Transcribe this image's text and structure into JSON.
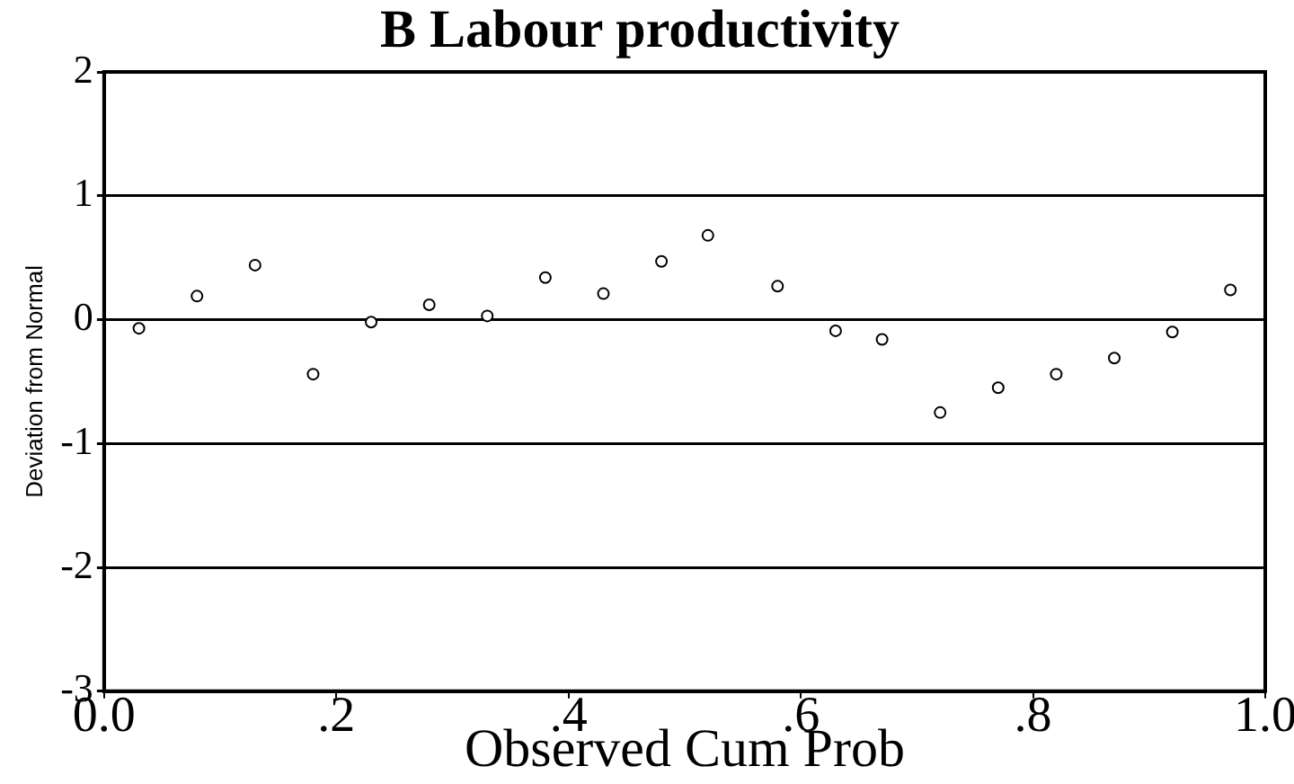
{
  "chart_data": {
    "type": "scatter",
    "title": "B Labour productivity",
    "xlabel": "Observed Cum Prob",
    "ylabel": "Deviation from Normal",
    "x": [
      0.03,
      0.08,
      0.13,
      0.18,
      0.23,
      0.28,
      0.33,
      0.38,
      0.43,
      0.48,
      0.52,
      0.58,
      0.63,
      0.67,
      0.72,
      0.77,
      0.82,
      0.87,
      0.92,
      0.97
    ],
    "series": [
      {
        "color": "#000000",
        "values": [
          -0.07,
          0.19,
          0.44,
          -0.44,
          -0.02,
          0.12,
          0.03,
          0.34,
          0.21,
          0.47,
          0.68,
          0.27,
          -0.09,
          -0.16,
          -0.75,
          -0.55,
          -0.44,
          -0.31,
          -0.1,
          0.24
        ]
      }
    ],
    "xlim": [
      0,
      1
    ],
    "xticks": [
      {
        "value": 0,
        "label": "0.0"
      },
      {
        "value": 0.2,
        "label": ".2"
      },
      {
        "value": 0.4,
        "label": ".4"
      },
      {
        "value": 0.6,
        "label": ".6"
      },
      {
        "value": 0.8,
        "label": ".8"
      },
      {
        "value": 1,
        "label": "1.0"
      }
    ],
    "ylim": [
      -3,
      2
    ],
    "yticks": [
      -3,
      -2,
      -1,
      0,
      1,
      2
    ],
    "grid": "y",
    "marker": "circle"
  }
}
